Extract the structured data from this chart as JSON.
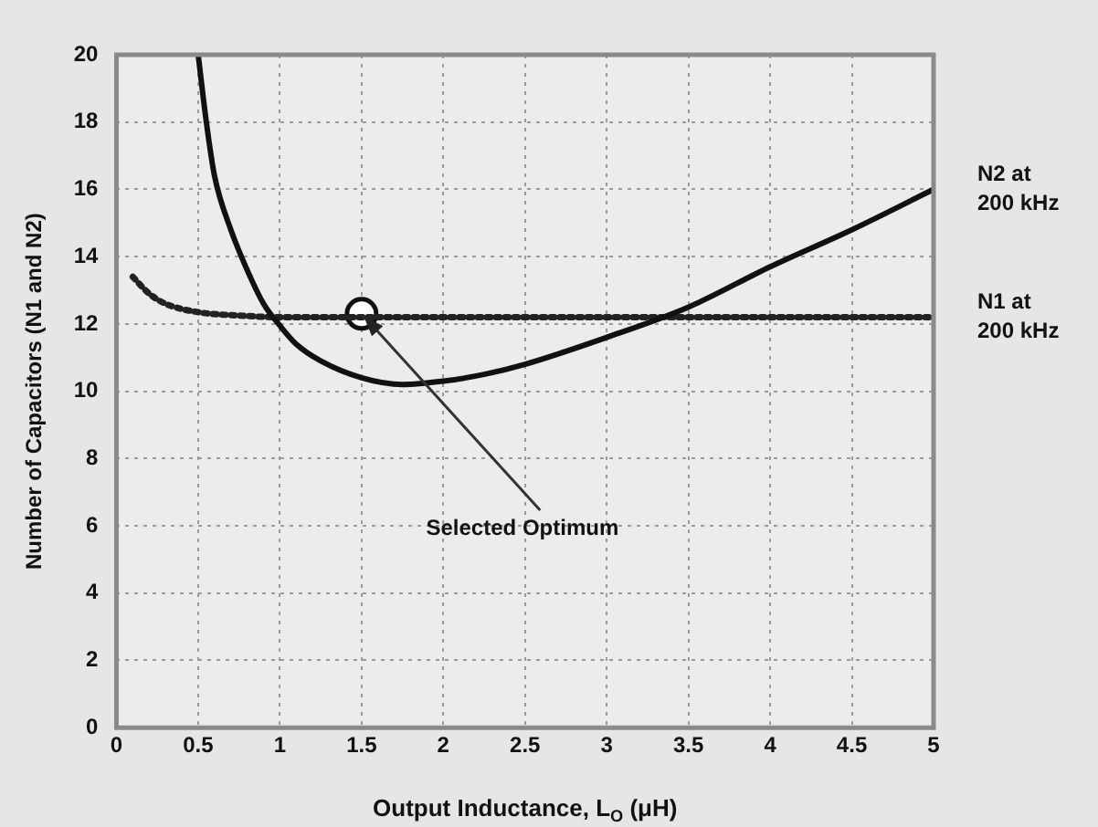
{
  "chart_data": {
    "type": "line",
    "xlabel": "Output Inductance, L$_{O}$ (μH)",
    "ylabel": "Number of Capacitors (N1 and N2)",
    "xlim": [
      0,
      5
    ],
    "xticks": [
      0,
      0.5,
      1,
      1.5,
      2,
      2.5,
      3,
      3.5,
      4,
      4.5,
      5
    ],
    "ylim": [
      0,
      20
    ],
    "yticks": [
      0,
      2,
      4,
      6,
      8,
      10,
      12,
      14,
      16,
      18,
      20
    ],
    "grid": true,
    "series": [
      {
        "name": "N2 at 200 kHz",
        "type": "line",
        "color": "#111111",
        "line_style": "solid",
        "marker": "none",
        "x": [
          0.5,
          0.55,
          0.6,
          0.7,
          0.8,
          0.9,
          1,
          1.1,
          1.25,
          1.5,
          1.75,
          2,
          2.25,
          2.5,
          3,
          3.5,
          4,
          4.5,
          5
        ],
        "values": [
          20,
          18,
          16.4,
          14.8,
          13.6,
          12.6,
          11.95,
          11.4,
          10.9,
          10.4,
          10.2,
          10.3,
          10.5,
          10.8,
          11.6,
          12.5,
          13.7,
          14.8,
          16
        ]
      },
      {
        "name": "N1 at 200 kHz",
        "type": "line",
        "color": "#222222",
        "line_style": "dotted",
        "marker": "none",
        "x": [
          0.1,
          0.2,
          0.3,
          0.5,
          0.75,
          1,
          1.5,
          2,
          3,
          4,
          5
        ],
        "values": [
          13.4,
          12.9,
          12.6,
          12.35,
          12.25,
          12.2,
          12.2,
          12.2,
          12.2,
          12.2,
          12.2
        ]
      },
      {
        "type": "scatter",
        "color": "#111111",
        "marker": "circle",
        "x": [
          1.5
        ],
        "values": [
          12.3
        ]
      }
    ],
    "annotations": [
      {
        "text": "Selected Optimum",
        "x": 1.5,
        "y": 12.3
      }
    ]
  }
}
